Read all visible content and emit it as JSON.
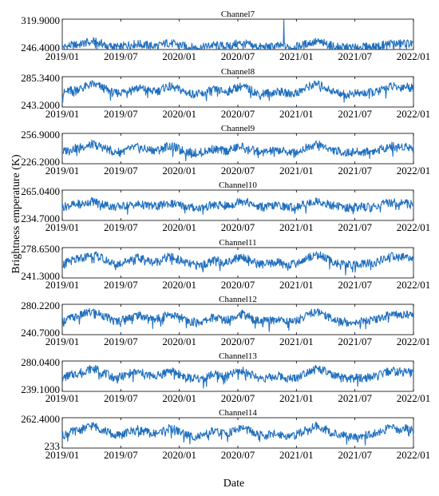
{
  "figure": {
    "ylabel": "Brightness emperature (K)",
    "xlabel": "Date",
    "line_color": "#1f6fbf"
  },
  "chart_data": [
    {
      "type": "line",
      "title": "Channel7",
      "ylim": [
        246.4,
        319.9
      ],
      "yticks": [
        "319.9000",
        "246.4000"
      ],
      "x_start": "2019/01",
      "x_end": "2022/01",
      "xticks": [
        "2019/01",
        "2019/07",
        "2020/01",
        "2020/07",
        "2021/01",
        "2021/07",
        "2022/01"
      ],
      "series": [
        {
          "values": [
            251,
            256,
            258,
            262,
            266,
            262,
            257,
            252,
            254,
            258,
            260,
            258,
            255,
            256,
            262,
            260,
            256,
            252,
            251,
            252,
            257,
            256,
            254,
            259,
            262,
            258,
            253,
            252,
            253,
            255,
            252,
            252,
            256,
            262,
            265,
            262,
            256,
            253,
            251,
            252,
            252,
            253,
            254,
            258,
            262,
            260,
            262,
            259
          ]
        }
      ]
    },
    {
      "type": "line",
      "title": "Channel8",
      "ylim": [
        243.2,
        285.34
      ],
      "yticks": [
        "285.3400",
        "243.2000"
      ],
      "x_start": "2019/01",
      "x_end": "2022/01",
      "xticks": [
        "2019/01",
        "2019/07",
        "2020/01",
        "2020/07",
        "2021/01",
        "2021/07",
        "2022/01"
      ],
      "series": [
        {
          "values": [
            262,
            266,
            268,
            271,
            275,
            272,
            267,
            262,
            264,
            268,
            270,
            268,
            265,
            266,
            272,
            270,
            266,
            262,
            261,
            262,
            267,
            266,
            264,
            269,
            272,
            268,
            263,
            262,
            263,
            265,
            262,
            262,
            266,
            272,
            275,
            272,
            266,
            263,
            261,
            262,
            262,
            263,
            264,
            268,
            272,
            270,
            272,
            269
          ]
        }
      ]
    },
    {
      "type": "line",
      "title": "Channel9",
      "ylim": [
        226.2,
        256.9
      ],
      "yticks": [
        "256.9000",
        "226.2000"
      ],
      "x_start": "2019/01",
      "x_end": "2022/01",
      "xticks": [
        "2019/01",
        "2019/07",
        "2020/01",
        "2020/07",
        "2021/01",
        "2021/07",
        "2022/01"
      ],
      "series": [
        {
          "values": [
            238,
            241,
            242,
            244,
            246,
            244,
            241,
            238,
            239,
            241,
            243,
            241,
            240,
            240,
            244,
            243,
            240,
            238,
            237,
            238,
            241,
            240,
            239,
            242,
            244,
            241,
            239,
            238,
            239,
            240,
            238,
            238,
            240,
            244,
            246,
            244,
            240,
            239,
            237,
            238,
            238,
            239,
            239,
            242,
            244,
            243,
            244,
            242
          ]
        }
      ]
    },
    {
      "type": "line",
      "title": "Channel10",
      "ylim": [
        234.7,
        265.04
      ],
      "yticks": [
        "265.0400",
        "234.7000"
      ],
      "x_start": "2019/01",
      "x_end": "2022/01",
      "xticks": [
        "2019/01",
        "2019/07",
        "2020/01",
        "2020/07",
        "2021/01",
        "2021/07",
        "2022/01"
      ],
      "series": [
        {
          "values": [
            248,
            250,
            251,
            252,
            254,
            252,
            250,
            248,
            249,
            250,
            251,
            250,
            249,
            249,
            252,
            251,
            250,
            248,
            247,
            248,
            250,
            250,
            249,
            251,
            256,
            252,
            249,
            248,
            249,
            250,
            248,
            248,
            250,
            252,
            254,
            252,
            250,
            249,
            247,
            248,
            248,
            249,
            249,
            251,
            253,
            252,
            253,
            251
          ]
        }
      ]
    },
    {
      "type": "line",
      "title": "Channel11",
      "ylim": [
        241.3,
        278.65
      ],
      "yticks": [
        "278.6500",
        "241.3000"
      ],
      "x_start": "2019/01",
      "x_end": "2022/01",
      "xticks": [
        "2019/01",
        "2019/07",
        "2020/01",
        "2020/07",
        "2021/01",
        "2021/07",
        "2022/01"
      ],
      "series": [
        {
          "values": [
            258,
            262,
            264,
            267,
            270,
            267,
            263,
            258,
            260,
            264,
            266,
            264,
            261,
            262,
            267,
            266,
            262,
            258,
            257,
            258,
            263,
            262,
            260,
            265,
            268,
            264,
            259,
            258,
            259,
            261,
            258,
            258,
            262,
            267,
            270,
            267,
            262,
            259,
            257,
            258,
            258,
            259,
            260,
            264,
            268,
            266,
            268,
            265
          ]
        }
      ]
    },
    {
      "type": "line",
      "title": "Channel12",
      "ylim": [
        240.7,
        280.22
      ],
      "yticks": [
        "280.2200",
        "240.7000"
      ],
      "x_start": "2019/01",
      "x_end": "2022/01",
      "xticks": [
        "2019/01",
        "2019/07",
        "2020/01",
        "2020/07",
        "2021/01",
        "2021/07",
        "2022/01"
      ],
      "series": [
        {
          "values": [
            258,
            262,
            264,
            268,
            271,
            268,
            263,
            258,
            260,
            264,
            266,
            264,
            261,
            262,
            268,
            266,
            262,
            258,
            257,
            258,
            263,
            262,
            260,
            265,
            268,
            264,
            259,
            258,
            259,
            261,
            258,
            258,
            262,
            268,
            271,
            268,
            262,
            259,
            257,
            258,
            258,
            259,
            260,
            264,
            268,
            266,
            268,
            265
          ]
        }
      ]
    },
    {
      "type": "line",
      "title": "Channel13",
      "ylim": [
        239.1,
        280.04
      ],
      "yticks": [
        "280.0400",
        "239.1000"
      ],
      "x_start": "2019/01",
      "x_end": "2022/01",
      "xticks": [
        "2019/01",
        "2019/07",
        "2020/01",
        "2020/07",
        "2021/01",
        "2021/07",
        "2022/01"
      ],
      "series": [
        {
          "values": [
            257,
            261,
            263,
            267,
            270,
            267,
            262,
            257,
            259,
            263,
            265,
            263,
            260,
            261,
            267,
            265,
            261,
            257,
            256,
            257,
            262,
            261,
            259,
            264,
            267,
            263,
            258,
            257,
            258,
            260,
            257,
            257,
            261,
            267,
            270,
            267,
            261,
            258,
            256,
            257,
            257,
            258,
            259,
            263,
            267,
            265,
            267,
            264
          ]
        }
      ]
    },
    {
      "type": "line",
      "title": "Channel14",
      "ylim": [
        233,
        262.4
      ],
      "yticks": [
        "262.4000",
        "233"
      ],
      "x_start": "2019/01",
      "x_end": "2022/01",
      "xticks": [
        "2019/01",
        "2019/07",
        "2020/01",
        "2020/07",
        "2021/01",
        "2021/07",
        "2022/01"
      ],
      "series": [
        {
          "values": [
            245,
            248,
            250,
            252,
            255,
            252,
            249,
            245,
            246,
            249,
            251,
            249,
            247,
            248,
            252,
            251,
            248,
            245,
            244,
            245,
            249,
            248,
            247,
            250,
            253,
            250,
            246,
            245,
            246,
            247,
            245,
            245,
            248,
            252,
            255,
            252,
            248,
            246,
            244,
            245,
            245,
            246,
            247,
            250,
            253,
            251,
            253,
            250
          ]
        }
      ]
    }
  ]
}
